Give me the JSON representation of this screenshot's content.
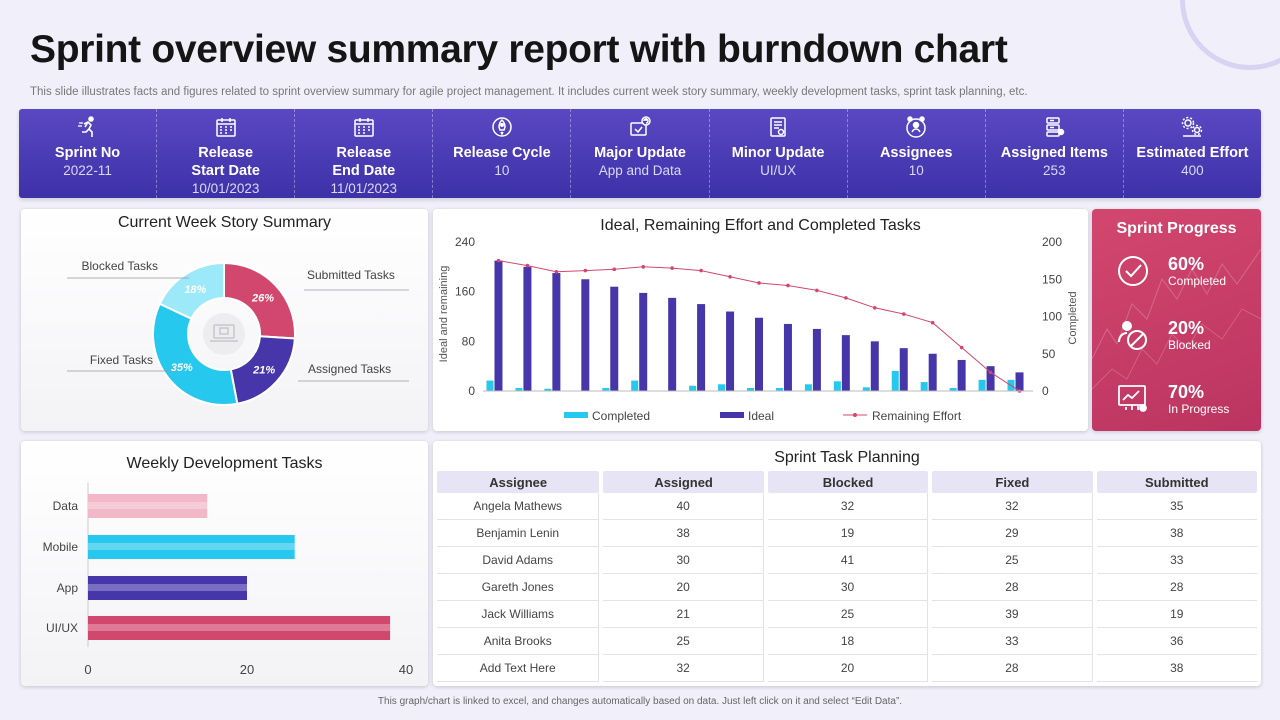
{
  "title": "Sprint overview summary report with burndown chart",
  "subtitle": "This slide illustrates facts and figures related to sprint overview summary for agile project management. It includes current week story summary, weekly development tasks, sprint task planning, etc.",
  "kpis": [
    {
      "label": "Sprint No",
      "value": "2022-11",
      "icon": "runner-icon"
    },
    {
      "label": "Release\nStart Date",
      "value": "10/01/2023",
      "icon": "calendar-icon"
    },
    {
      "label": "Release\nEnd Date",
      "value": "11/01/2023",
      "icon": "calendar-icon"
    },
    {
      "label": "Release Cycle",
      "value": "10",
      "icon": "rocket-icon"
    },
    {
      "label": "Major Update",
      "value": "App and Data",
      "icon": "update-icon"
    },
    {
      "label": "Minor Update",
      "value": "UI/UX",
      "icon": "document-icon"
    },
    {
      "label": "Assignees",
      "value": "10",
      "icon": "team-icon"
    },
    {
      "label": "Assigned Items",
      "value": "253",
      "icon": "server-icon"
    },
    {
      "label": "Estimated Effort",
      "value": "400",
      "icon": "gears-icon"
    }
  ],
  "story_summary": {
    "title": "Current Week Story Summary",
    "chart_data": {
      "type": "pie",
      "title": "Current Week Story Summary",
      "slices": [
        {
          "label": "Submitted Tasks",
          "value": 26,
          "text": "26%",
          "color": "#d2476e"
        },
        {
          "label": "Assigned Tasks",
          "value": 21,
          "text": "21%",
          "color": "#4636a9"
        },
        {
          "label": "Fixed Tasks",
          "value": 35,
          "text": "35%",
          "color": "#27c8ee"
        },
        {
          "label": "Blocked Tasks",
          "value": 18,
          "text": "18%",
          "color": "#9ce9fa"
        }
      ]
    }
  },
  "burndown": {
    "title": "Ideal, Remaining Effort and Completed Tasks",
    "ylabel_left": "Ideal and remaining",
    "ylabel_right": "Completed",
    "left_ticks": [
      "240",
      "160",
      "80",
      "0"
    ],
    "right_ticks": [
      "200",
      "150",
      "100",
      "50",
      "0"
    ],
    "legend": [
      "Completed",
      "Ideal",
      "Remaining Effort"
    ],
    "chart_data": {
      "type": "bar",
      "title": "Ideal, Remaining Effort and Completed Tasks",
      "ylim_left": [
        0,
        240
      ],
      "ylim_right": [
        0,
        200
      ],
      "series": [
        {
          "name": "Completed",
          "axis": "right",
          "color": "#27c8ee",
          "values": [
            14,
            4,
            3,
            0,
            4,
            14,
            0,
            7,
            9,
            4,
            4,
            9,
            13,
            5,
            27,
            12,
            4,
            15,
            15
          ]
        },
        {
          "name": "Ideal",
          "axis": "left",
          "color": "#4636a9",
          "values": [
            210,
            200,
            190,
            180,
            168,
            158,
            150,
            140,
            128,
            118,
            108,
            100,
            90,
            80,
            69,
            60,
            50,
            40,
            30
          ]
        },
        {
          "name": "Remaining Effort",
          "axis": "left",
          "color": "#d2476e",
          "values": [
            210,
            202,
            192,
            194,
            196,
            200,
            198,
            194,
            184,
            174,
            170,
            162,
            150,
            134,
            124,
            110,
            70,
            30,
            0
          ]
        }
      ]
    }
  },
  "sprint_progress": {
    "title": "Sprint Progress",
    "items": [
      {
        "pct": "60%",
        "label": "Completed",
        "icon": "check-icon"
      },
      {
        "pct": "20%",
        "label": "Blocked",
        "icon": "blocked-user-icon"
      },
      {
        "pct": "70%",
        "label": "In Progress",
        "icon": "progress-chart-icon"
      }
    ]
  },
  "weekly_tasks": {
    "title": "Weekly Development Tasks",
    "chart_data": {
      "type": "bar",
      "orientation": "horizontal",
      "title": "Weekly Development Tasks",
      "categories": [
        "Data",
        "Mobile",
        "App",
        "UI/UX"
      ],
      "values": [
        15,
        26,
        20,
        38
      ],
      "colors": [
        "#f2b8ca",
        "#27c8ee",
        "#4636a9",
        "#d2476e"
      ],
      "xlim": [
        0,
        40
      ],
      "xticks": [
        "0",
        "20",
        "40"
      ]
    }
  },
  "task_planning": {
    "title": "Sprint Task Planning",
    "columns": [
      "Assignee",
      "Assigned",
      "Blocked",
      "Fixed",
      "Submitted"
    ],
    "rows": [
      [
        "Angela Mathews",
        "40",
        "32",
        "32",
        "35"
      ],
      [
        "Benjamin Lenin",
        "38",
        "19",
        "29",
        "38"
      ],
      [
        "David Adams",
        "30",
        "41",
        "25",
        "33"
      ],
      [
        "Gareth Jones",
        "20",
        "30",
        "28",
        "28"
      ],
      [
        "Jack Williams",
        "21",
        "25",
        "39",
        "19"
      ],
      [
        "Anita Brooks",
        "25",
        "18",
        "33",
        "36"
      ],
      [
        "Add Text Here",
        "32",
        "20",
        "28",
        "38"
      ]
    ]
  },
  "footer": "This graph/chart is linked to excel, and changes automatically based on data. Just left click on it and select “Edit Data”."
}
